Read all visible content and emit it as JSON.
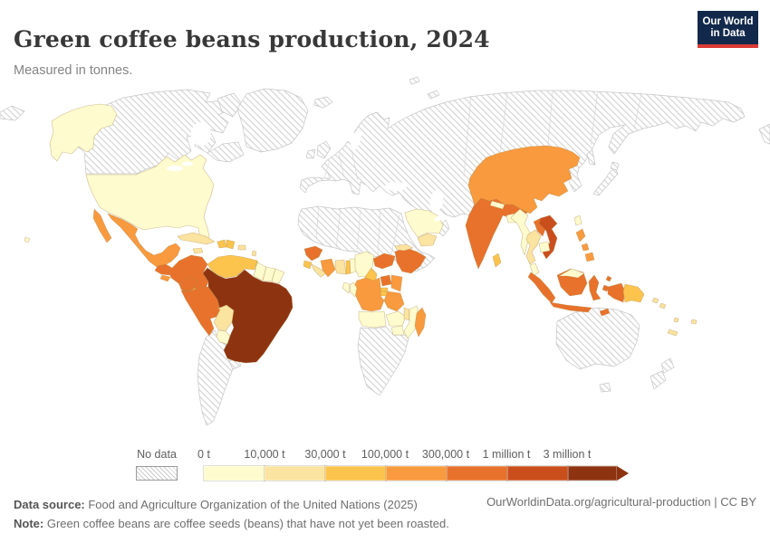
{
  "header": {
    "title": "Green coffee beans production, 2024",
    "subtitle": "Measured in tonnes.",
    "logo": {
      "line1": "Our World",
      "line2": "in Data",
      "bg": "#12294b",
      "accent": "#dc3a35"
    }
  },
  "legend": {
    "no_data_label": "No data",
    "tick_labels": [
      "0 t",
      "10,000 t",
      "30,000 t",
      "100,000 t",
      "300,000 t",
      "1 million t",
      "3 million t"
    ],
    "colors": [
      "#fefbce",
      "#fbe3a0",
      "#fcc44d",
      "#f99a3e",
      "#e8722b",
      "#ca4e1c",
      "#8e3310"
    ]
  },
  "footer": {
    "data_source_label": "Data source:",
    "data_source_text": " Food and Agriculture Organization of the United Nations (2025)",
    "note_label": "Note:",
    "note_text": " Green coffee beans are coffee seeds (beans) that have not yet been roasted.",
    "link": "OurWorldinData.org/agricultural-production | CC BY"
  },
  "chart_data": {
    "type": "choropleth",
    "title": "Green coffee beans production, 2024",
    "unit": "tonnes",
    "legend_bands": [
      {
        "band": 0,
        "range": "0 – 10,000 t"
      },
      {
        "band": 1,
        "range": "10,000 – 30,000 t"
      },
      {
        "band": 2,
        "range": "30,000 – 100,000 t"
      },
      {
        "band": 3,
        "range": "100,000 – 300,000 t"
      },
      {
        "band": 4,
        "range": "300,000 t – 1 million t"
      },
      {
        "band": 5,
        "range": "1 – 3 million t"
      },
      {
        "band": 6,
        "range": "more than 3 million t"
      }
    ],
    "countries": [
      {
        "name": "Brazil",
        "band": 6
      },
      {
        "name": "Vietnam",
        "band": 5
      },
      {
        "name": "Colombia",
        "band": 4
      },
      {
        "name": "Peru",
        "band": 4
      },
      {
        "name": "Ecuador",
        "band": 4
      },
      {
        "name": "Guatemala",
        "band": 4
      },
      {
        "name": "Honduras",
        "band": 4
      },
      {
        "name": "Ethiopia",
        "band": 4
      },
      {
        "name": "Uganda",
        "band": 4
      },
      {
        "name": "Central African Republic",
        "band": 4
      },
      {
        "name": "Guinea",
        "band": 4
      },
      {
        "name": "India",
        "band": 4
      },
      {
        "name": "Laos",
        "band": 4
      },
      {
        "name": "Indonesia",
        "band": 4
      },
      {
        "name": "Timor-Leste",
        "band": 4
      },
      {
        "name": "Mexico",
        "band": 3
      },
      {
        "name": "Nicaragua",
        "band": 3
      },
      {
        "name": "Costa Rica",
        "band": 3
      },
      {
        "name": "El Salvador",
        "band": 3
      },
      {
        "name": "China",
        "band": 3
      },
      {
        "name": "Cote d'Ivoire",
        "band": 3
      },
      {
        "name": "Madagascar",
        "band": 3
      },
      {
        "name": "Kenya",
        "band": 3
      },
      {
        "name": "Tanzania",
        "band": 3
      },
      {
        "name": "Democratic Republic of Congo",
        "band": 3
      },
      {
        "name": "Philippines",
        "band": 3
      },
      {
        "name": "Venezuela",
        "band": 2
      },
      {
        "name": "Haiti",
        "band": 2
      },
      {
        "name": "Dominican Republic",
        "band": 2
      },
      {
        "name": "Sierra Leone",
        "band": 2
      },
      {
        "name": "Togo",
        "band": 2
      },
      {
        "name": "Cameroon",
        "band": 2
      },
      {
        "name": "Rwanda",
        "band": 2
      },
      {
        "name": "Burundi",
        "band": 2
      },
      {
        "name": "Sri Lanka",
        "band": 2
      },
      {
        "name": "Papua New Guinea",
        "band": 2
      },
      {
        "name": "Cuba",
        "band": 1
      },
      {
        "name": "Jamaica",
        "band": 1
      },
      {
        "name": "Puerto Rico",
        "band": 1
      },
      {
        "name": "Panama",
        "band": 1
      },
      {
        "name": "Bolivia",
        "band": 1
      },
      {
        "name": "Liberia",
        "band": 1
      },
      {
        "name": "Ghana",
        "band": 1
      },
      {
        "name": "Malawi",
        "band": 1
      },
      {
        "name": "Eritrea",
        "band": 1
      },
      {
        "name": "Yemen",
        "band": 1
      },
      {
        "name": "Thailand",
        "band": 1
      },
      {
        "name": "Lesser Antilles",
        "band": 1
      },
      {
        "name": "Solomon Islands",
        "band": 1
      },
      {
        "name": "Vanuatu",
        "band": 1
      },
      {
        "name": "New Caledonia",
        "band": 1
      },
      {
        "name": "Fiji",
        "band": 1
      },
      {
        "name": "United States",
        "band": 0
      },
      {
        "name": "Paraguay",
        "band": 0
      },
      {
        "name": "Guyana",
        "band": 0
      },
      {
        "name": "Suriname",
        "band": 0
      },
      {
        "name": "French Guiana",
        "band": 0
      },
      {
        "name": "Trinidad and Tobago",
        "band": 0
      },
      {
        "name": "Nigeria",
        "band": 0
      },
      {
        "name": "Benin",
        "band": 0
      },
      {
        "name": "Gabon",
        "band": 0
      },
      {
        "name": "Congo",
        "band": 0
      },
      {
        "name": "Angola",
        "band": 0
      },
      {
        "name": "Zambia",
        "band": 0
      },
      {
        "name": "Zimbabwe",
        "band": 0
      },
      {
        "name": "Mozambique",
        "band": 0
      },
      {
        "name": "Saudi Arabia",
        "band": 0
      },
      {
        "name": "Nepal",
        "band": 0
      },
      {
        "name": "Bangladesh",
        "band": 0
      },
      {
        "name": "Myanmar",
        "band": 0
      },
      {
        "name": "Cambodia",
        "band": 0
      },
      {
        "name": "Malaysia",
        "band": 0
      },
      {
        "name": "Taiwan",
        "band": 0
      }
    ],
    "no_data_regions": [
      "Canada",
      "Greenland",
      "Europe",
      "Russia",
      "Middle East and Central Asia",
      "North Africa",
      "Southern Africa",
      "Argentina and Chile",
      "Uruguay",
      "Australia",
      "Japan and Korea",
      "New Zealand"
    ]
  }
}
